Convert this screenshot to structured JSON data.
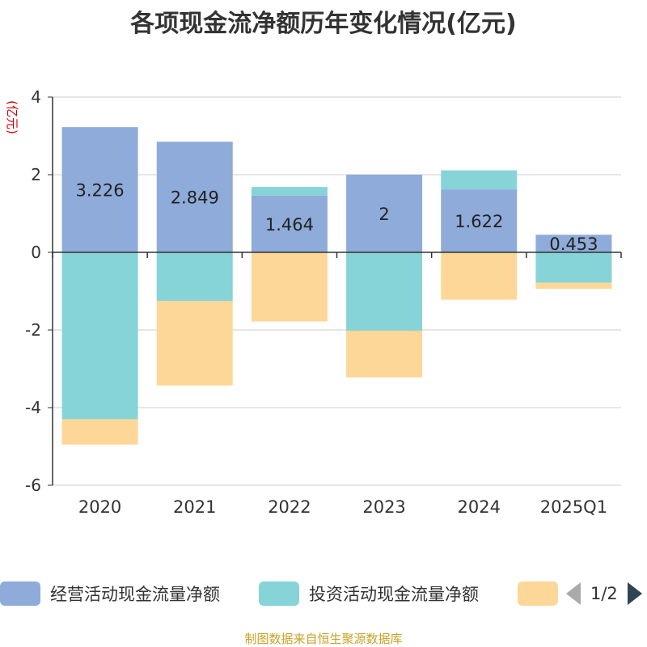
{
  "chart_data": {
    "type": "bar",
    "stacked": true,
    "title": "各项现金流净额历年变化情况(亿元)",
    "ylabel": "(亿元)",
    "categories": [
      "2020",
      "2021",
      "2022",
      "2023",
      "2024",
      "2025Q1"
    ],
    "ylim": [
      -6,
      4
    ],
    "yticks": [
      4,
      2,
      0,
      -2,
      -4,
      -6
    ],
    "grid": true,
    "legend_position": "bottom",
    "series": [
      {
        "name": "经营活动现金流量净额",
        "color": "#8eabd9",
        "values": [
          3.226,
          2.849,
          1.464,
          2,
          1.622,
          0.453
        ],
        "show_labels": true
      },
      {
        "name": "投资活动现金流量净额",
        "color": "#86d3d8",
        "values": [
          -4.3,
          -1.25,
          0.22,
          -2.02,
          0.49,
          -0.78
        ],
        "show_labels": false
      },
      {
        "name": "",
        "color": "#fdd798",
        "values": [
          -0.65,
          -2.18,
          -1.78,
          -1.2,
          -1.22,
          -0.16
        ],
        "show_labels": false
      }
    ]
  },
  "legend": {
    "pager": "1/2"
  },
  "source_note": "制图数据来自恒生聚源数据库"
}
